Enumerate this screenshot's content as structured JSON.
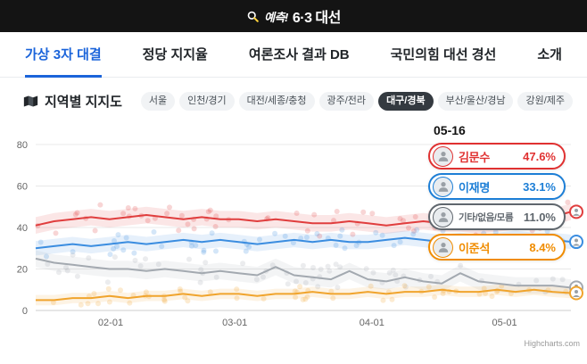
{
  "header": {
    "logo_prefix": "예측!",
    "logo_title": "6·3 대선",
    "bar_color": "#141414",
    "accent_color": "#ffd43b"
  },
  "nav": {
    "tabs": [
      {
        "label": "가상 3자 대결",
        "active": true
      },
      {
        "label": "정당 지지율",
        "active": false
      },
      {
        "label": "여론조사 결과 DB",
        "active": false
      },
      {
        "label": "국민의힘 대선 경선",
        "active": false
      },
      {
        "label": "소개",
        "active": false
      }
    ],
    "active_color": "#1b64da"
  },
  "section": {
    "title": "지역별 지지도",
    "regions": [
      {
        "label": "서울",
        "selected": false
      },
      {
        "label": "인천/경기",
        "selected": false
      },
      {
        "label": "대전/세종/충청",
        "selected": false
      },
      {
        "label": "광주/전라",
        "selected": false
      },
      {
        "label": "대구/경북",
        "selected": true
      },
      {
        "label": "부산/울산/경남",
        "selected": false
      },
      {
        "label": "강원/제주",
        "selected": false
      }
    ]
  },
  "legend": {
    "date": "05-16",
    "items": [
      {
        "name": "김문수",
        "value": "47.6%",
        "color": "#e03131"
      },
      {
        "name": "이재명",
        "value": "33.1%",
        "color": "#1c7ed6"
      },
      {
        "name": "기타/없음/모름",
        "value": "11.0%",
        "color": "#5f666d"
      },
      {
        "name": "이준석",
        "value": "8.4%",
        "color": "#f08c00"
      }
    ]
  },
  "chart_data": {
    "type": "line",
    "title": "지역별 지지도 - 대구/경북",
    "x_start": "01-15",
    "x_end": "05-16",
    "ylim": [
      0,
      80
    ],
    "yticks": [
      0,
      20,
      40,
      60,
      80
    ],
    "xticks": [
      {
        "label": "02-01",
        "pos": 0.14
      },
      {
        "label": "03-01",
        "pos": 0.372
      },
      {
        "label": "04-01",
        "pos": 0.628
      },
      {
        "label": "05-01",
        "pos": 0.876
      }
    ],
    "grid": true,
    "legend_position": "top-right-overlay",
    "series": [
      {
        "name": "김문수",
        "color": "#e03e3e",
        "final_value": 47.6,
        "band": 4,
        "spread": 13,
        "values": [
          41,
          43,
          44,
          45,
          44,
          45,
          46,
          45,
          44,
          45,
          44,
          44,
          43,
          44,
          43,
          42,
          42,
          43,
          42,
          41,
          42,
          43,
          42,
          42,
          41,
          42,
          43,
          44,
          45,
          47.6
        ]
      },
      {
        "name": "이재명",
        "color": "#3b8de0",
        "final_value": 33.1,
        "band": 3.5,
        "spread": 11,
        "values": [
          30,
          31,
          32,
          31,
          32,
          33,
          32,
          33,
          34,
          33,
          34,
          33,
          32,
          33,
          34,
          33,
          34,
          33,
          33,
          34,
          35,
          34,
          33,
          34,
          33,
          34,
          35,
          34,
          34,
          33.1
        ]
      },
      {
        "name": "기타/없음/모름",
        "color": "#a3a9b0",
        "final_value": 11.0,
        "band": 4,
        "spread": 13,
        "values": [
          25,
          23,
          22,
          21,
          20,
          20,
          19,
          20,
          19,
          18,
          19,
          18,
          17,
          21,
          17,
          16,
          15,
          19,
          15,
          14,
          16,
          14,
          13,
          18,
          14,
          13,
          12,
          12,
          12,
          11.0
        ]
      },
      {
        "name": "이준석",
        "color": "#f0a42d",
        "final_value": 8.4,
        "band": 2.5,
        "spread": 7,
        "values": [
          5,
          5,
          6,
          6,
          7,
          6,
          7,
          7,
          8,
          7,
          8,
          8,
          7,
          8,
          8,
          9,
          8,
          8,
          9,
          8,
          9,
          9,
          10,
          9,
          9,
          10,
          9,
          10,
          9,
          8.4
        ]
      }
    ]
  },
  "watermark": "Highcharts.com"
}
